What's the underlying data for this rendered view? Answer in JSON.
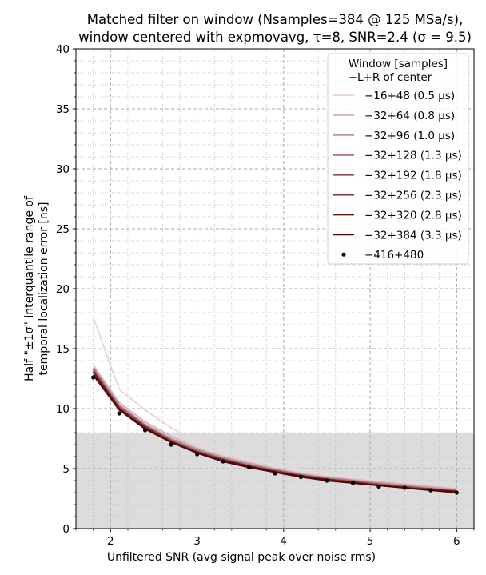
{
  "chart_data": {
    "type": "line",
    "title": "Matched filter on window (Nsamples=384 @ 125 MSa/s),",
    "subtitle": "window centered with expmovavg, τ=8, SNR=2.4 (σ = 9.5)",
    "xlabel": "Unfiltered SNR (avg signal peak over noise rms)",
    "ylabel_line1": "Half \"±1σ\" interquantile range of",
    "ylabel_line2": "temporal localization error [ns]",
    "xlim": [
      1.6,
      6.2
    ],
    "ylim": [
      0,
      40
    ],
    "x_ticks": [
      2,
      3,
      4,
      5,
      6
    ],
    "y_ticks": [
      0,
      5,
      10,
      15,
      20,
      25,
      30,
      35,
      40
    ],
    "grid": true,
    "shaded_band": {
      "y_from": 0,
      "y_to": 8,
      "color": "#dcdcdc"
    },
    "legend": {
      "placement": "top-right",
      "title_line1": "Window [samples]",
      "title_line2": "−L+R of center"
    },
    "x": [
      1.8,
      2.1,
      2.4,
      2.7,
      3.0,
      3.3,
      3.6,
      3.9,
      4.2,
      4.5,
      4.8,
      5.1,
      5.4,
      5.7,
      6.0
    ],
    "series": [
      {
        "name": "−16+48 (0.5 μs)",
        "color": "#e8d8db",
        "style": "line",
        "values": [
          17.6,
          11.6,
          9.9,
          8.4,
          7.2,
          6.5,
          5.8,
          5.3,
          4.9,
          4.6,
          4.3,
          4.0,
          3.8,
          3.6,
          3.4
        ]
      },
      {
        "name": "−32+64 (0.8 μs)",
        "color": "#d4b4b8",
        "style": "line",
        "values": [
          13.6,
          10.5,
          8.9,
          7.7,
          6.7,
          6.0,
          5.5,
          5.0,
          4.6,
          4.3,
          4.1,
          3.9,
          3.7,
          3.5,
          3.3
        ]
      },
      {
        "name": "−32+96 (1.0 μs)",
        "color": "#bf9498",
        "style": "line",
        "values": [
          13.4,
          10.3,
          8.7,
          7.5,
          6.6,
          5.9,
          5.4,
          4.9,
          4.5,
          4.2,
          4.0,
          3.8,
          3.6,
          3.4,
          3.2
        ]
      },
      {
        "name": "−32+128 (1.3 μs)",
        "color": "#aa7377",
        "style": "line",
        "values": [
          13.3,
          10.2,
          8.6,
          7.4,
          6.5,
          5.8,
          5.3,
          4.9,
          4.5,
          4.2,
          4.0,
          3.7,
          3.5,
          3.3,
          3.2
        ]
      },
      {
        "name": "−32+192 (1.8 μs)",
        "color": "#935257",
        "style": "line",
        "values": [
          13.2,
          10.1,
          8.5,
          7.3,
          6.4,
          5.8,
          5.2,
          4.8,
          4.4,
          4.1,
          3.9,
          3.7,
          3.5,
          3.3,
          3.1
        ]
      },
      {
        "name": "−32+256 (2.3 μs)",
        "color": "#7d3239",
        "style": "line",
        "values": [
          13.1,
          10.0,
          8.5,
          7.3,
          6.4,
          5.7,
          5.2,
          4.8,
          4.4,
          4.1,
          3.9,
          3.6,
          3.4,
          3.3,
          3.1
        ]
      },
      {
        "name": "−32+320 (2.8 μs)",
        "color": "#6e1519",
        "style": "line",
        "values": [
          13.0,
          10.0,
          8.4,
          7.2,
          6.3,
          5.7,
          5.2,
          4.7,
          4.4,
          4.1,
          3.8,
          3.6,
          3.4,
          3.2,
          3.1
        ]
      },
      {
        "name": "−32+384 (3.3 μs)",
        "color": "#4f0606",
        "style": "line",
        "values": [
          12.8,
          9.9,
          8.3,
          7.2,
          6.3,
          5.6,
          5.1,
          4.7,
          4.3,
          4.0,
          3.8,
          3.6,
          3.4,
          3.2,
          3.0
        ]
      },
      {
        "name": "−416+480",
        "color": "#000000",
        "style": "marker",
        "values": [
          12.6,
          9.6,
          8.2,
          7.0,
          6.2,
          5.6,
          5.1,
          4.6,
          4.3,
          4.0,
          3.8,
          3.5,
          3.4,
          3.2,
          3.0
        ]
      }
    ]
  }
}
